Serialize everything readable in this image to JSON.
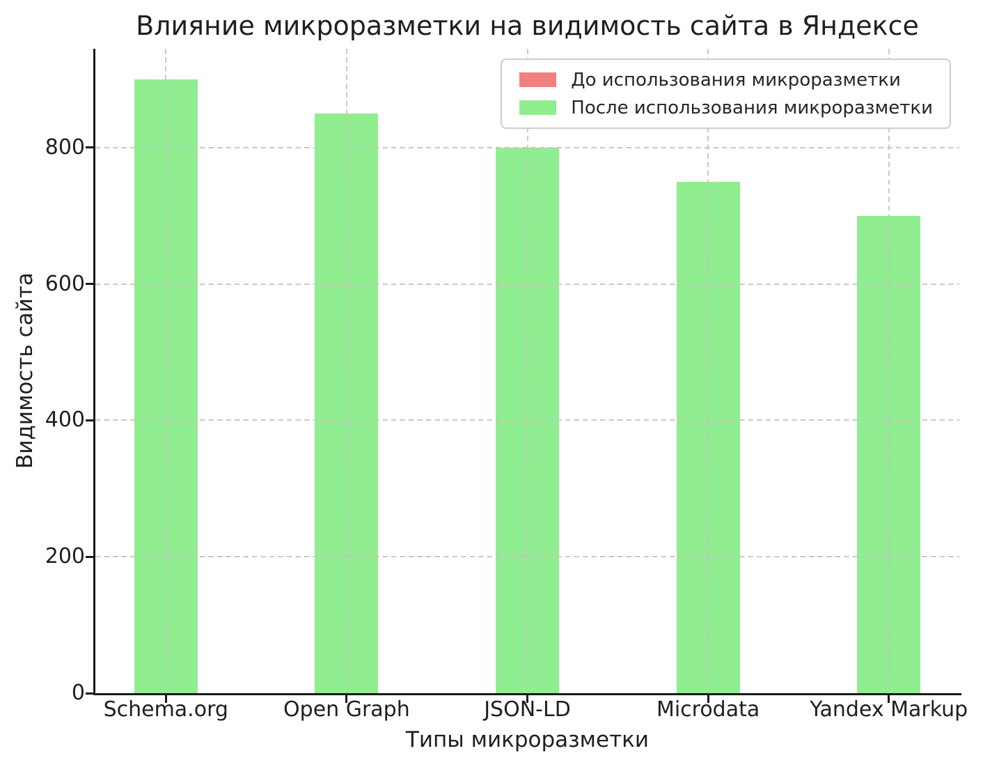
{
  "chart_data": {
    "type": "bar",
    "title": "Влияние микроразметки на видимость сайта в Яндексе",
    "xlabel": "Типы микроразметки",
    "ylabel": "Видимость сайта",
    "categories": [
      "Schema.org",
      "Open Graph",
      "JSON-LD",
      "Microdata",
      "Yandex Markup"
    ],
    "series": [
      {
        "name": "До использования микроразметки",
        "color": "#f08080",
        "values": null,
        "visible_in_plot": false
      },
      {
        "name": "После использования микроразметки",
        "color": "#90ee90",
        "values": [
          900,
          850,
          800,
          750,
          700
        ],
        "visible_in_plot": true
      }
    ],
    "yticks": [
      0,
      200,
      400,
      600,
      800
    ],
    "ylim": [
      0,
      945
    ],
    "xlim": [
      -0.39,
      4.39
    ],
    "bar_width_units": 0.35,
    "grid": {
      "visible": true,
      "axis": "both",
      "style": "dashed",
      "color": "#c8c8c8"
    },
    "legend_position": "upper right",
    "colors": {
      "text": "#1f1f1f",
      "spine": "#1a1a1a",
      "background": "#ffffff"
    }
  }
}
